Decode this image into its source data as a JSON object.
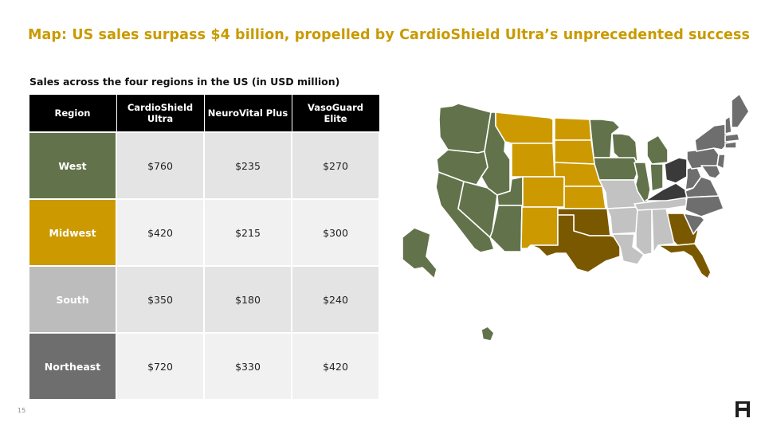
{
  "slide": {
    "title": "Map: US sales surpass $4 billion, propelled by CardioShield Ultra’s unprecedented success",
    "subtitle": "Sales across the four regions in the US (in USD million)",
    "page_number": "15"
  },
  "table": {
    "headers": [
      "Region",
      "CardioShield Ultra",
      "NeuroVital Plus",
      "VasoGuard Elite"
    ],
    "rows": [
      {
        "region": "West",
        "color": "#62734b",
        "values": [
          "$760",
          "$235",
          "$270"
        ]
      },
      {
        "region": "Midwest",
        "color": "#cc9a00",
        "values": [
          "$420",
          "$215",
          "$300"
        ]
      },
      {
        "region": "South",
        "color": "#bcbcbc",
        "values": [
          "$350",
          "$180",
          "$240"
        ]
      },
      {
        "region": "Northeast",
        "color": "#6e6e6e",
        "values": [
          "$720",
          "$330",
          "$420"
        ]
      }
    ]
  },
  "map_colors": {
    "west": "#62734b",
    "midwest": "#cc9a00",
    "south_central": "#7a5800",
    "south": "#c2c2c2",
    "northeast": "#6e6e6e",
    "northeast_dark": "#3a3a3a",
    "border": "#ffffff"
  },
  "icons": {
    "logo": "h-logo-icon"
  }
}
